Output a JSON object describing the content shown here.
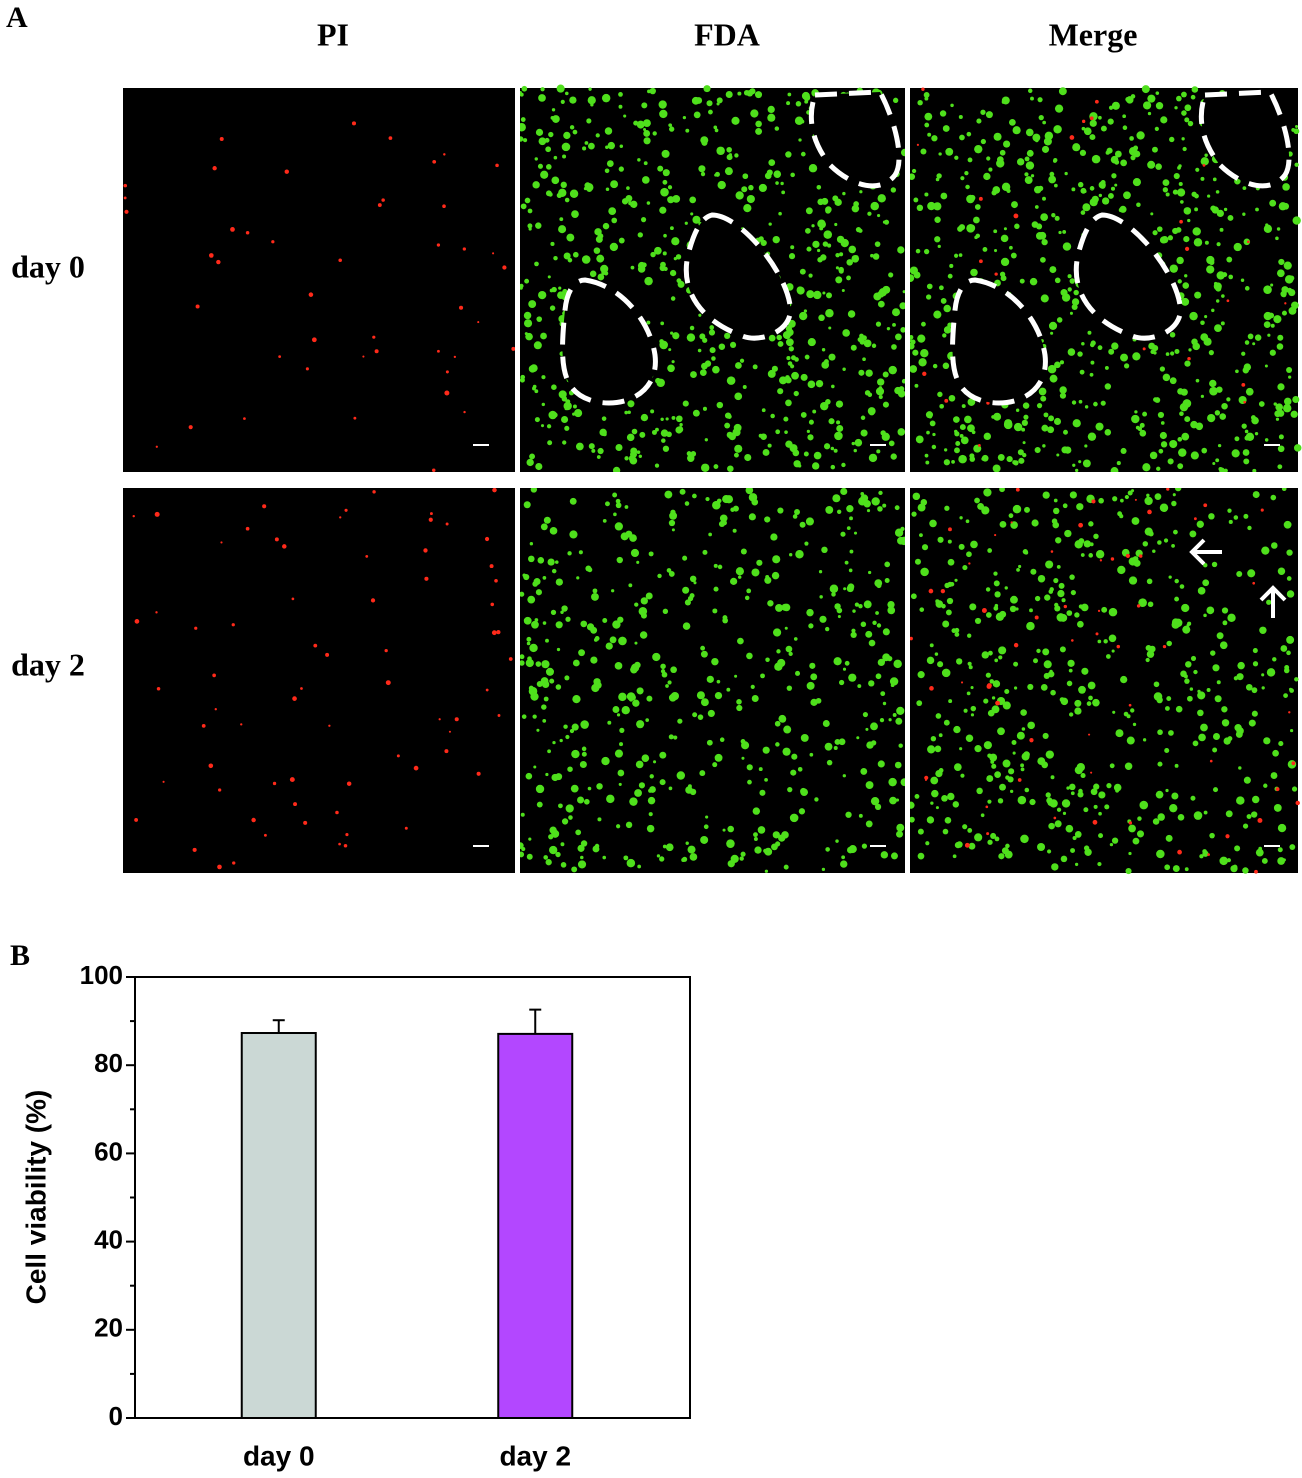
{
  "panel_a": {
    "label": "A",
    "columns": [
      "PI",
      "FDA",
      "Merge"
    ],
    "rows": [
      "day 0",
      "day 2"
    ]
  },
  "chart_data": {
    "type": "bar",
    "label": "B",
    "ylabel": "Cell viability (%)",
    "categories": [
      "day 0",
      "day 2"
    ],
    "values": [
      87.3,
      87.1
    ],
    "errors": [
      2.9,
      5.5
    ],
    "colors": [
      "#cbd8d5",
      "#b347ff"
    ],
    "ylim": [
      0,
      100
    ],
    "yticks": [
      0,
      20,
      40,
      60,
      80,
      100
    ],
    "yminorticks": [
      10,
      30,
      50,
      70,
      90
    ]
  }
}
